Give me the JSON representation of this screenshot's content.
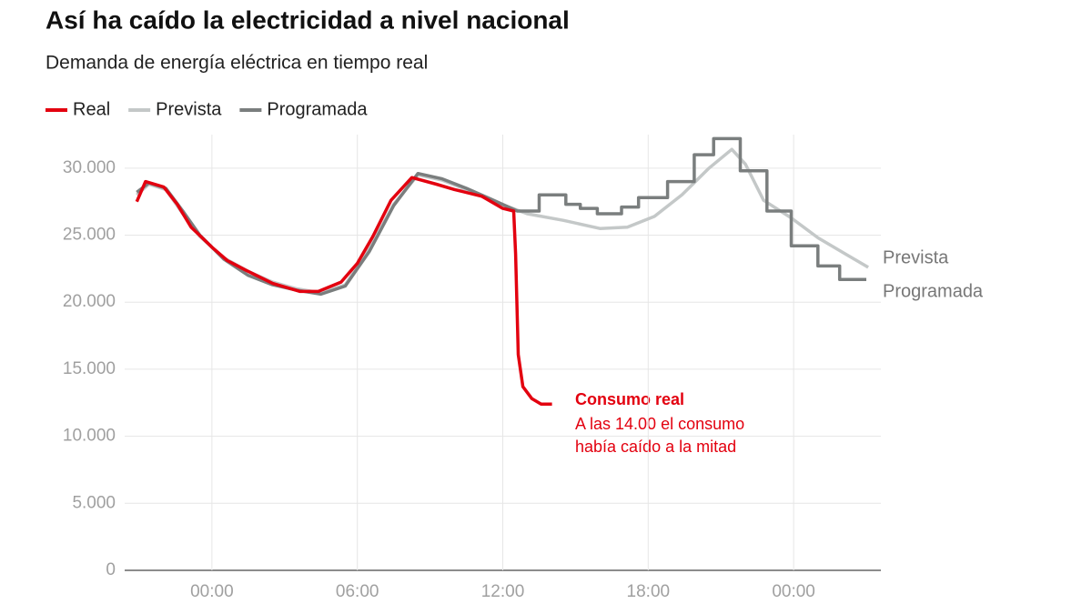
{
  "chart_data": {
    "type": "line",
    "title": "Así ha caído la electricidad a nivel nacional",
    "subtitle": "Demanda de energía eléctrica en tiempo real",
    "annotation": {
      "title": "Consumo real",
      "lines": [
        "A las 14.00 el consumo",
        "había caído a la mitad"
      ]
    },
    "xlim": [
      -3.6,
      27.6
    ],
    "xticks": [
      {
        "value": 0,
        "label": "00:00"
      },
      {
        "value": 6,
        "label": "06:00"
      },
      {
        "value": 12,
        "label": "12:00"
      },
      {
        "value": 18,
        "label": "18:00"
      },
      {
        "value": 24,
        "label": "00:00"
      }
    ],
    "ylim": [
      0,
      32500
    ],
    "yticks": [
      0,
      {
        "value": 5000,
        "label": "5.000"
      },
      {
        "value": 10000,
        "label": "10.000"
      },
      {
        "value": 15000,
        "label": "15.000"
      },
      {
        "value": 20000,
        "label": "20.000"
      },
      {
        "value": 25000,
        "label": "25.000"
      },
      {
        "value": 30000,
        "label": "30.000"
      }
    ],
    "grid": true,
    "series": [
      {
        "name": "Real",
        "color": "#e3000f",
        "x": [
          -3.1,
          -2.74,
          -1.99,
          -1.43,
          -0.86,
          0,
          0.64,
          1.39,
          2.51,
          3.64,
          4.39,
          5.33,
          6,
          6.64,
          7.39,
          8.25,
          9.26,
          10.01,
          11.14,
          12,
          12.45,
          12.53,
          12.64,
          12.83,
          13.2,
          13.58,
          14.03
        ],
        "values": [
          27500,
          29000,
          28600,
          27300,
          25600,
          24100,
          23100,
          22400,
          21400,
          20800,
          20800,
          21500,
          22900,
          24900,
          27600,
          29300,
          28800,
          28400,
          27900,
          27000,
          26800,
          23600,
          16100,
          13700,
          12800,
          12400,
          12400
        ]
      },
      {
        "name": "Prevista",
        "color": "#c4c8c8",
        "x": [
          -3.1,
          -2.6,
          -1.9,
          -1.2,
          -0.5,
          0.5,
          1.5,
          2.5,
          3.5,
          4.5,
          5.5,
          6.5,
          7.5,
          8.5,
          9.5,
          10.5,
          11.5,
          13.01,
          14.51,
          16.01,
          17.14,
          18.26,
          19.39,
          20.51,
          21.45,
          22.01,
          22.76,
          23.89,
          25.01,
          26.14,
          27.08
        ],
        "values": [
          28000,
          28800,
          28400,
          26600,
          24900,
          23300,
          22300,
          21500,
          21000,
          20700,
          21300,
          24000,
          27300,
          29500,
          29100,
          28400,
          27600,
          26600,
          26100,
          25500,
          25600,
          26400,
          28000,
          30000,
          31400,
          30300,
          27600,
          26300,
          24800,
          23600,
          22600
        ]
      },
      {
        "name": "Programada",
        "color": "#7a7e7e",
        "x": [
          -3.1,
          -2.6,
          -1.9,
          -1.2,
          -0.5,
          0.5,
          1.5,
          2.5,
          3.5,
          4.5,
          5.5,
          6.5,
          7.5,
          8.5,
          9.5,
          10.5,
          11.5,
          12.6,
          13.5,
          13.5,
          14.6,
          14.6,
          15.2,
          15.2,
          15.9,
          15.9,
          16.9,
          16.9,
          17.6,
          17.6,
          18.8,
          18.8,
          19.9,
          19.9,
          20.7,
          20.7,
          21.8,
          21.8,
          22.9,
          22.9,
          23.9,
          23.9,
          25.0,
          25.0,
          25.9,
          25.9,
          27.0
        ],
        "values": [
          28200,
          28900,
          28500,
          26800,
          25000,
          23200,
          22000,
          21300,
          20900,
          20600,
          21200,
          23800,
          27200,
          29600,
          29200,
          28500,
          27700,
          26800,
          26800,
          28000,
          28000,
          27300,
          27300,
          27000,
          27000,
          26600,
          26600,
          27100,
          27100,
          27800,
          27800,
          29000,
          29000,
          31000,
          31000,
          32200,
          32200,
          29800,
          29800,
          26800,
          26800,
          24200,
          24200,
          22700,
          22700,
          21700,
          21700
        ]
      }
    ]
  }
}
